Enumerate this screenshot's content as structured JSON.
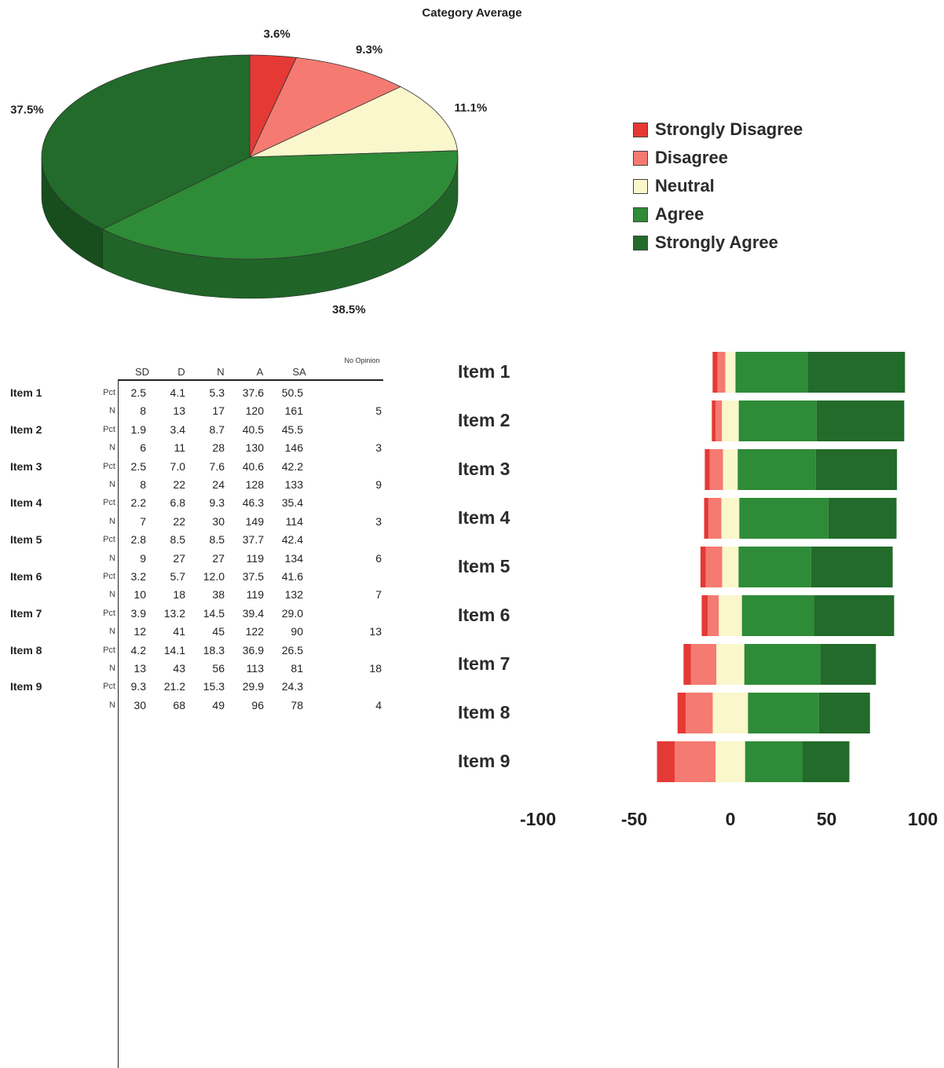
{
  "chart_data": [
    {
      "type": "pie",
      "title": "Category Average",
      "slices": [
        {
          "label": "Strongly Disagree",
          "value": 3.6,
          "display": "3.6%"
        },
        {
          "label": "Disagree",
          "value": 9.3,
          "display": "9.3%"
        },
        {
          "label": "Neutral",
          "value": 11.1,
          "display": "11.1%"
        },
        {
          "label": "Agree",
          "value": 38.5,
          "display": "38.5%"
        },
        {
          "label": "Strongly Agree",
          "value": 37.5,
          "display": "37.5%"
        }
      ],
      "legend": {
        "placement": "right",
        "entries": [
          "Strongly Disagree",
          "Disagree",
          "Neutral",
          "Agree",
          "Strongly Agree"
        ]
      },
      "colors": {
        "Strongly Disagree": "#e53935",
        "Disagree": "#f57a72",
        "Neutral": "#fbf7cc",
        "Agree": "#2e8b37",
        "Strongly Agree": "#226b2a"
      },
      "style": "3d"
    },
    {
      "type": "table",
      "headers": [
        "SD",
        "D",
        "N",
        "A",
        "SA",
        "No Opinion"
      ],
      "row_labels": [
        "Pct",
        "N"
      ],
      "items": [
        {
          "label": "Item 1",
          "pct": [
            "2.5",
            "4.1",
            "5.3",
            "37.6",
            "50.5"
          ],
          "n": [
            "8",
            "13",
            "17",
            "120",
            "161"
          ],
          "no_opinion": "5"
        },
        {
          "label": "Item 2",
          "pct": [
            "1.9",
            "3.4",
            "8.7",
            "40.5",
            "45.5"
          ],
          "n": [
            "6",
            "11",
            "28",
            "130",
            "146"
          ],
          "no_opinion": "3"
        },
        {
          "label": "Item 3",
          "pct": [
            "2.5",
            "7.0",
            "7.6",
            "40.6",
            "42.2"
          ],
          "n": [
            "8",
            "22",
            "24",
            "128",
            "133"
          ],
          "no_opinion": "9"
        },
        {
          "label": "Item 4",
          "pct": [
            "2.2",
            "6.8",
            "9.3",
            "46.3",
            "35.4"
          ],
          "n": [
            "7",
            "22",
            "30",
            "149",
            "114"
          ],
          "no_opinion": "3"
        },
        {
          "label": "Item 5",
          "pct": [
            "2.8",
            "8.5",
            "8.5",
            "37.7",
            "42.4"
          ],
          "n": [
            "9",
            "27",
            "27",
            "119",
            "134"
          ],
          "no_opinion": "6"
        },
        {
          "label": "Item 6",
          "pct": [
            "3.2",
            "5.7",
            "12.0",
            "37.5",
            "41.6"
          ],
          "n": [
            "10",
            "18",
            "38",
            "119",
            "132"
          ],
          "no_opinion": "7"
        },
        {
          "label": "Item 7",
          "pct": [
            "3.9",
            "13.2",
            "14.5",
            "39.4",
            "29.0"
          ],
          "n": [
            "12",
            "41",
            "45",
            "122",
            "90"
          ],
          "no_opinion": "13"
        },
        {
          "label": "Item 8",
          "pct": [
            "4.2",
            "14.1",
            "18.3",
            "36.9",
            "26.5"
          ],
          "n": [
            "13",
            "43",
            "56",
            "113",
            "81"
          ],
          "no_opinion": "18"
        },
        {
          "label": "Item 9",
          "pct": [
            "9.3",
            "21.2",
            "15.3",
            "29.9",
            "24.3"
          ],
          "n": [
            "30",
            "68",
            "49",
            "96",
            "78"
          ],
          "no_opinion": "4"
        }
      ]
    },
    {
      "type": "bar",
      "orientation": "horizontal",
      "stacked": "diverging",
      "categories": [
        "Item 1",
        "Item 2",
        "Item 3",
        "Item 4",
        "Item 5",
        "Item 6",
        "Item 7",
        "Item 8",
        "Item 9"
      ],
      "series": [
        {
          "name": "Strongly Disagree",
          "values": [
            2.5,
            1.9,
            2.5,
            2.2,
            2.8,
            3.2,
            3.9,
            4.2,
            9.3
          ]
        },
        {
          "name": "Disagree",
          "values": [
            4.1,
            3.4,
            7.0,
            6.8,
            8.5,
            5.7,
            13.2,
            14.1,
            21.2
          ]
        },
        {
          "name": "Neutral",
          "values": [
            5.3,
            8.7,
            7.6,
            9.3,
            8.5,
            12.0,
            14.5,
            18.3,
            15.3
          ]
        },
        {
          "name": "Agree",
          "values": [
            37.6,
            40.5,
            40.6,
            46.3,
            37.7,
            37.5,
            39.4,
            36.9,
            29.9
          ]
        },
        {
          "name": "Strongly Agree",
          "values": [
            50.5,
            45.5,
            42.2,
            35.4,
            42.4,
            41.6,
            29.0,
            26.5,
            24.3
          ]
        }
      ],
      "xlim": [
        -100,
        100
      ],
      "x_ticks": [
        "-100",
        "-50",
        "0",
        "50",
        "100"
      ],
      "grid": false
    }
  ]
}
